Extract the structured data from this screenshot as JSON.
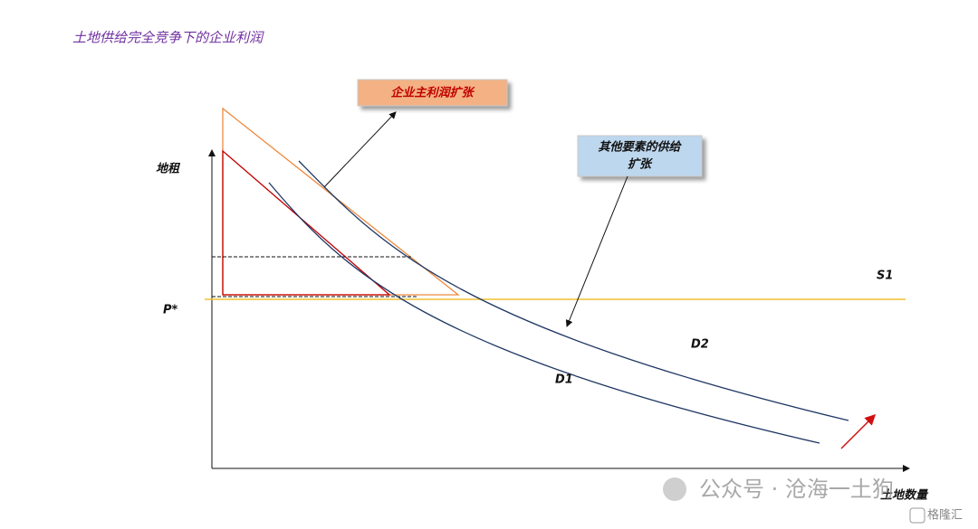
{
  "title": "土地供给完全竞争下的企业利润",
  "labels": {
    "y_axis": "地租",
    "x_axis": "土地数量",
    "price": "P*",
    "supply": "S1",
    "demand_2": "D2",
    "demand_1": "D1"
  },
  "callouts": [
    {
      "text": "企业主利润扩张"
    },
    {
      "lines": [
        "其他要素的供给",
        "扩张"
      ]
    }
  ],
  "watermark": {
    "text": "公众号 · 沧海一土狗",
    "source": "格隆汇"
  }
}
